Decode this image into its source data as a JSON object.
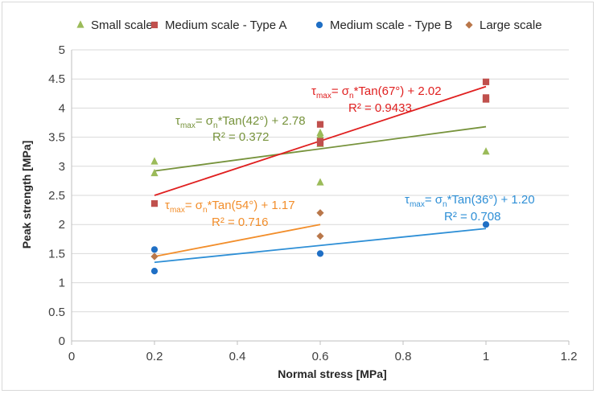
{
  "chart_data": {
    "type": "scatter",
    "xlabel": "Normal stress [MPa]",
    "ylabel": "Peak strength [MPa]",
    "xlim": [
      0,
      1.2
    ],
    "ylim": [
      0,
      5
    ],
    "x_ticks": [
      "0",
      "0.2",
      "0.4",
      "0.6",
      "0.8",
      "1",
      "1.2"
    ],
    "y_ticks": [
      "0",
      "0.5",
      "1",
      "1.5",
      "2",
      "2.5",
      "3",
      "3.5",
      "4",
      "4.5",
      "5"
    ],
    "grid": "horizontal",
    "legend_position": "top",
    "series": [
      {
        "name": "Small scale",
        "marker": "triangle",
        "color": "#9bbb59",
        "points": [
          [
            0.2,
            3.08
          ],
          [
            0.2,
            2.88
          ],
          [
            0.6,
            3.57
          ],
          [
            0.6,
            3.53
          ],
          [
            0.6,
            3.38
          ],
          [
            0.6,
            2.72
          ],
          [
            1.0,
            4.15
          ],
          [
            1.0,
            3.25
          ]
        ],
        "fit": {
          "x": [
            0.2,
            1.0
          ],
          "y": [
            2.92,
            3.68
          ],
          "color": "#77933c",
          "eq_tau": "τ",
          "eq_sub": "max",
          "eq_mid": "= σ",
          "eq_sub2": "n",
          "eq_end": "*Tan(42°) + 2.78",
          "r2": "R² = 0.372"
        }
      },
      {
        "name": "Medium scale - Type A",
        "marker": "square",
        "color": "#c0504d",
        "points": [
          [
            0.2,
            2.36
          ],
          [
            0.6,
            3.72
          ],
          [
            0.6,
            3.43
          ],
          [
            0.6,
            3.4
          ],
          [
            1.0,
            4.45
          ],
          [
            1.0,
            4.18
          ],
          [
            1.0,
            4.15
          ]
        ],
        "fit": {
          "x": [
            0.2,
            1.0
          ],
          "y": [
            2.5,
            4.37
          ],
          "color": "#e02020",
          "eq_tau": "τ",
          "eq_sub": "max",
          "eq_mid": "= σ",
          "eq_sub2": "n",
          "eq_end": "*Tan(67°) + 2.02",
          "r2": "R² = 0.9433"
        }
      },
      {
        "name": "Medium scale - Type B",
        "marker": "circle",
        "color": "#1f6fc5",
        "points": [
          [
            0.2,
            1.57
          ],
          [
            0.2,
            1.2
          ],
          [
            0.6,
            1.5
          ],
          [
            1.0,
            2.0
          ]
        ],
        "fit": {
          "x": [
            0.2,
            1.0
          ],
          "y": [
            1.35,
            1.93
          ],
          "color": "#2e8fd6",
          "eq_tau": "τ",
          "eq_sub": "max",
          "eq_mid": "= σ",
          "eq_sub2": "n",
          "eq_end": "*Tan(36°) + 1.20",
          "r2": "R² = 0.708"
        }
      },
      {
        "name": "Large scale",
        "marker": "diamond",
        "color": "#b9774a",
        "points": [
          [
            0.2,
            1.45
          ],
          [
            0.6,
            2.2
          ],
          [
            0.6,
            1.8
          ]
        ],
        "fit": {
          "x": [
            0.2,
            0.6
          ],
          "y": [
            1.45,
            2.0
          ],
          "color": "#f28e2b",
          "eq_tau": "τ",
          "eq_sub": "max",
          "eq_mid": "= σ",
          "eq_sub2": "n",
          "eq_end": "*Tan(54°) + 1.17",
          "r2": "R² = 0.716"
        }
      }
    ]
  }
}
